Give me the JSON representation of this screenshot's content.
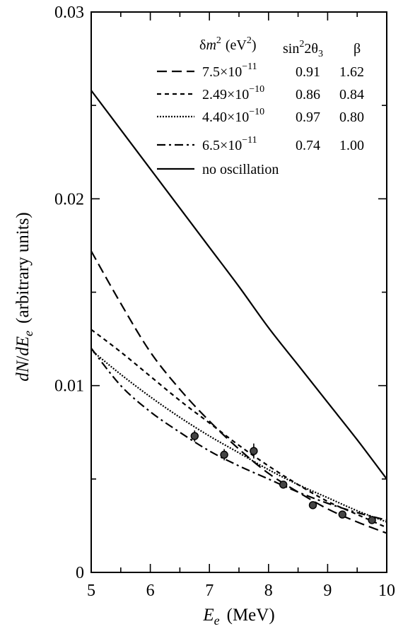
{
  "chart_data": {
    "type": "line",
    "xlabel": {
      "main": "E",
      "sub": "e",
      "unit": "(MeV)"
    },
    "ylabel": {
      "pre": "dN",
      "sep": "/",
      "main": "dE",
      "sub": "e",
      "unit": "(arbitrary units)"
    },
    "xlim": [
      5,
      10
    ],
    "ylim": [
      0,
      0.03
    ],
    "x_ticks": [
      5,
      6,
      7,
      8,
      9,
      10
    ],
    "x_tick_labels": [
      "5",
      "6",
      "7",
      "8",
      "9",
      "10"
    ],
    "y_ticks": [
      0,
      0.01,
      0.02,
      0.03
    ],
    "y_tick_labels": [
      "0",
      "0.01",
      "0.02",
      "0.03"
    ],
    "legend": {
      "placement": "top-right",
      "headers": {
        "dm2": {
          "delta": "δ",
          "m": "m",
          "sup": "2",
          "unit_pre": "(eV",
          "unit_sup": "2",
          "unit_post": ")"
        },
        "sin": {
          "pre": "sin",
          "sup": "2",
          "post": "2θ",
          "sub": "3"
        },
        "beta": "β"
      }
    },
    "series": [
      {
        "style": "dashed",
        "dm2_base": "7.5×10",
        "dm2_exp": "−11",
        "sin2": "0.91",
        "beta": "1.62",
        "x": [
          5,
          5.5,
          6,
          6.5,
          7,
          7.5,
          8,
          8.5,
          9,
          9.5,
          10
        ],
        "y": [
          0.0172,
          0.0144,
          0.0118,
          0.0098,
          0.0081,
          0.0066,
          0.0053,
          0.0043,
          0.0034,
          0.0027,
          0.0021
        ]
      },
      {
        "style": "short-dashed",
        "dm2_base": "2.49×10",
        "dm2_exp": "−10",
        "sin2": "0.86",
        "beta": "0.84",
        "x": [
          5,
          5.5,
          6,
          6.5,
          7,
          7.5,
          8,
          8.5,
          9,
          9.5,
          10
        ],
        "y": [
          0.013,
          0.0118,
          0.0105,
          0.0092,
          0.008,
          0.0068,
          0.0057,
          0.0047,
          0.0038,
          0.0031,
          0.0024
        ]
      },
      {
        "style": "dotted",
        "dm2_base": "4.40×10",
        "dm2_exp": "−10",
        "sin2": "0.97",
        "beta": "0.80",
        "x": [
          5,
          5.5,
          6,
          6.5,
          7,
          7.5,
          8,
          8.5,
          9,
          9.5,
          10
        ],
        "y": [
          0.0119,
          0.0106,
          0.0094,
          0.0083,
          0.0073,
          0.0064,
          0.0055,
          0.0047,
          0.004,
          0.0033,
          0.0027
        ]
      },
      {
        "style": "dash-dot",
        "dm2_base": "6.5×10",
        "dm2_exp": "−11",
        "sin2": "0.74",
        "beta": "1.00",
        "x": [
          5,
          5.5,
          6,
          6.5,
          7,
          7.5,
          8,
          8.5,
          9,
          9.5,
          10
        ],
        "y": [
          0.012,
          0.01,
          0.0086,
          0.0075,
          0.0065,
          0.0057,
          0.005,
          0.0043,
          0.0037,
          0.0032,
          0.0028
        ]
      },
      {
        "style": "solid",
        "label": "no oscillation",
        "x": [
          5,
          5.5,
          6,
          6.5,
          7,
          7.5,
          8,
          8.5,
          9,
          9.5,
          10
        ],
        "y": [
          0.0258,
          0.0237,
          0.0216,
          0.0195,
          0.0174,
          0.0153,
          0.0131,
          0.0111,
          0.0091,
          0.0071,
          0.005
        ]
      }
    ],
    "points": [
      {
        "x": 6.75,
        "y": 0.0073,
        "err": 0.0003
      },
      {
        "x": 7.25,
        "y": 0.0063,
        "err": 0.0003
      },
      {
        "x": 7.75,
        "y": 0.0065,
        "err": 0.0004
      },
      {
        "x": 8.25,
        "y": 0.0047,
        "err": 0.0002
      },
      {
        "x": 8.75,
        "y": 0.0036,
        "err": 0.0002
      },
      {
        "x": 9.25,
        "y": 0.0031,
        "err": 0.0002
      },
      {
        "x": 9.75,
        "y": 0.0028,
        "err": 0.0002
      }
    ]
  }
}
